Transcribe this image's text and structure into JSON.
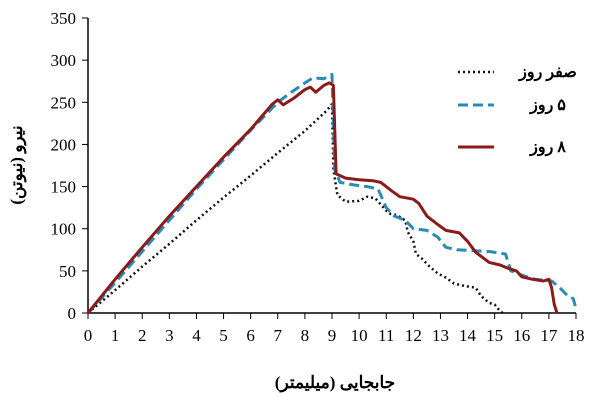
{
  "chart_data": {
    "type": "line",
    "title": "",
    "xlabel": "جابجایی (میلیمتر)",
    "ylabel": "نیرو (نیوتن)",
    "xlim": [
      0,
      18
    ],
    "ylim": [
      0,
      350
    ],
    "x_ticks": [
      0,
      1,
      2,
      3,
      4,
      5,
      6,
      7,
      8,
      9,
      10,
      11,
      12,
      13,
      14,
      15,
      16,
      17,
      18
    ],
    "y_ticks": [
      0,
      50,
      100,
      150,
      200,
      250,
      300,
      350
    ],
    "grid": false,
    "legend_position": "top-right",
    "series": [
      {
        "name": "صفر روز",
        "style": "dotted",
        "color": "#111111",
        "points": [
          [
            0,
            0
          ],
          [
            1,
            27
          ],
          [
            2,
            55
          ],
          [
            3,
            82
          ],
          [
            4,
            110
          ],
          [
            5,
            137
          ],
          [
            6,
            163
          ],
          [
            7,
            190
          ],
          [
            8,
            216
          ],
          [
            8.8,
            240
          ],
          [
            9.0,
            248
          ],
          [
            9.05,
            170
          ],
          [
            9.2,
            140
          ],
          [
            9.5,
            132
          ],
          [
            10,
            133
          ],
          [
            10.3,
            138
          ],
          [
            10.6,
            136
          ],
          [
            10.9,
            125
          ],
          [
            11.1,
            118
          ],
          [
            11.4,
            116
          ],
          [
            11.7,
            110
          ],
          [
            11.8,
            96
          ],
          [
            12.0,
            85
          ],
          [
            12.1,
            70
          ],
          [
            12.3,
            65
          ],
          [
            12.6,
            55
          ],
          [
            12.9,
            47
          ],
          [
            13.2,
            42
          ],
          [
            13.5,
            35
          ],
          [
            13.9,
            32
          ],
          [
            14.3,
            30
          ],
          [
            14.5,
            20
          ],
          [
            14.8,
            12
          ],
          [
            15.0,
            10
          ],
          [
            15.2,
            2
          ],
          [
            15.3,
            0
          ]
        ]
      },
      {
        "name": "۵ روز",
        "style": "dashed",
        "color": "#2a8ab8",
        "points": [
          [
            0,
            0
          ],
          [
            1,
            36
          ],
          [
            2,
            73
          ],
          [
            3,
            110
          ],
          [
            4,
            147
          ],
          [
            5,
            182
          ],
          [
            6,
            217
          ],
          [
            7,
            250
          ],
          [
            7.5,
            262
          ],
          [
            8,
            273
          ],
          [
            8.3,
            279
          ],
          [
            8.7,
            278
          ],
          [
            9.0,
            283
          ],
          [
            9.1,
            170
          ],
          [
            9.3,
            155
          ],
          [
            9.8,
            152
          ],
          [
            10.3,
            150
          ],
          [
            10.7,
            147
          ],
          [
            11.0,
            125
          ],
          [
            11.3,
            115
          ],
          [
            11.7,
            110
          ],
          [
            12.0,
            100
          ],
          [
            12.5,
            98
          ],
          [
            12.9,
            90
          ],
          [
            13.2,
            78
          ],
          [
            13.6,
            75
          ],
          [
            14.2,
            74
          ],
          [
            14.8,
            73
          ],
          [
            15.4,
            70
          ],
          [
            15.6,
            50
          ],
          [
            16.0,
            45
          ],
          [
            16.5,
            40
          ],
          [
            17.1,
            38
          ],
          [
            17.4,
            30
          ],
          [
            17.7,
            20
          ],
          [
            17.9,
            17
          ],
          [
            18.0,
            5
          ]
        ]
      },
      {
        "name": "۸ روز",
        "style": "solid",
        "color": "#8b1a1a",
        "points": [
          [
            0,
            0
          ],
          [
            1,
            40
          ],
          [
            2,
            78
          ],
          [
            3,
            115
          ],
          [
            4,
            150
          ],
          [
            5,
            185
          ],
          [
            6,
            218
          ],
          [
            6.8,
            248
          ],
          [
            7,
            253
          ],
          [
            7.2,
            247
          ],
          [
            7.6,
            255
          ],
          [
            8,
            265
          ],
          [
            8.2,
            268
          ],
          [
            8.4,
            262
          ],
          [
            8.7,
            270
          ],
          [
            8.9,
            273
          ],
          [
            9.05,
            270
          ],
          [
            9.15,
            165
          ],
          [
            9.5,
            160
          ],
          [
            10.0,
            158
          ],
          [
            10.5,
            157
          ],
          [
            10.8,
            155
          ],
          [
            11.0,
            150
          ],
          [
            11.2,
            145
          ],
          [
            11.5,
            138
          ],
          [
            12.0,
            135
          ],
          [
            12.2,
            130
          ],
          [
            12.5,
            115
          ],
          [
            12.9,
            105
          ],
          [
            13.2,
            98
          ],
          [
            13.7,
            95
          ],
          [
            14.0,
            85
          ],
          [
            14.3,
            72
          ],
          [
            14.8,
            60
          ],
          [
            15.2,
            57
          ],
          [
            15.5,
            53
          ],
          [
            15.8,
            50
          ],
          [
            16.0,
            43
          ],
          [
            16.4,
            40
          ],
          [
            16.8,
            38
          ],
          [
            17.0,
            40
          ],
          [
            17.1,
            30
          ],
          [
            17.2,
            10
          ],
          [
            17.3,
            0
          ]
        ]
      }
    ]
  }
}
